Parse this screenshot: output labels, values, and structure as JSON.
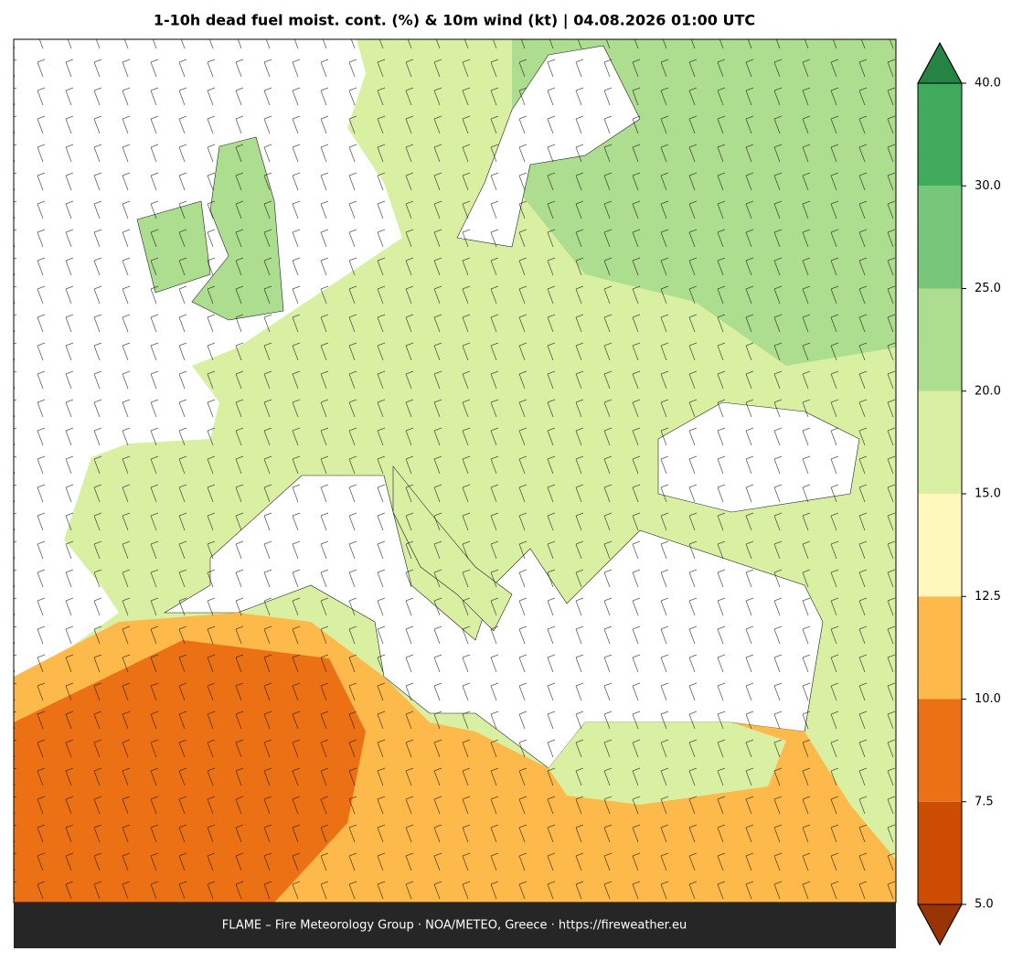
{
  "title": "1-10h dead fuel moist. cont. (%) & 10m wind (kt)  |  04.08.2026 01:00 UTC",
  "footer": "FLAME – Fire Meteorology Group · NOA/METEO, Greece · https://fireweather.eu",
  "colorbar": {
    "ticks": [
      {
        "value": 5,
        "label": "5.0"
      },
      {
        "value": 7.5,
        "label": "7.5"
      },
      {
        "value": 10,
        "label": "10.0"
      },
      {
        "value": 12.5,
        "label": "12.5"
      },
      {
        "value": 15,
        "label": "15.0"
      },
      {
        "value": 20,
        "label": "20.0"
      },
      {
        "value": 25,
        "label": "25.0"
      },
      {
        "value": 30,
        "label": "30.0"
      },
      {
        "value": 40,
        "label": "40.0"
      }
    ],
    "colors": [
      "#cc4c02",
      "#ec7014",
      "#fdb94a",
      "#fff7bc",
      "#d9f0a3",
      "#addd8e",
      "#78c679",
      "#41ab5d"
    ],
    "under_color": "#993404",
    "over_color": "#238443"
  }
}
